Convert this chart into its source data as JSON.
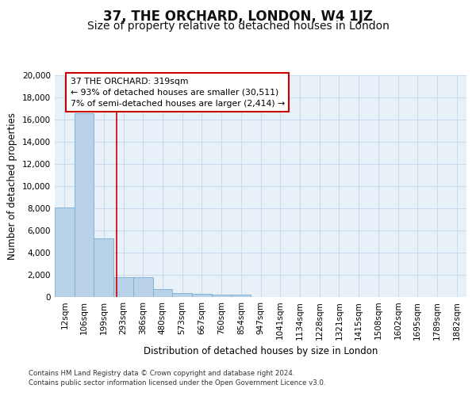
{
  "title": "37, THE ORCHARD, LONDON, W4 1JZ",
  "subtitle": "Size of property relative to detached houses in London",
  "xlabel": "Distribution of detached houses by size in London",
  "ylabel": "Number of detached properties",
  "footnote1": "Contains HM Land Registry data © Crown copyright and database right 2024.",
  "footnote2": "Contains public sector information licensed under the Open Government Licence v3.0.",
  "annotation_line1": "37 THE ORCHARD: 319sqm",
  "annotation_line2": "← 93% of detached houses are smaller (30,511)",
  "annotation_line3": "7% of semi-detached houses are larger (2,414) →",
  "bar_categories": [
    "12sqm",
    "106sqm",
    "199sqm",
    "293sqm",
    "386sqm",
    "480sqm",
    "573sqm",
    "667sqm",
    "760sqm",
    "854sqm",
    "947sqm",
    "1041sqm",
    "1134sqm",
    "1228sqm",
    "1321sqm",
    "1415sqm",
    "1508sqm",
    "1602sqm",
    "1695sqm",
    "1789sqm",
    "1882sqm"
  ],
  "bar_values": [
    8100,
    16600,
    5300,
    1800,
    1800,
    700,
    370,
    280,
    230,
    230,
    0,
    0,
    0,
    0,
    0,
    0,
    0,
    0,
    0,
    0,
    0
  ],
  "bar_color": "#b8d0e8",
  "bar_edge_color": "#7aaed0",
  "vline_color": "#cc0000",
  "vline_x": 2.65,
  "annotation_box_color": "#cc0000",
  "ylim": [
    0,
    20000
  ],
  "yticks": [
    0,
    2000,
    4000,
    6000,
    8000,
    10000,
    12000,
    14000,
    16000,
    18000,
    20000
  ],
  "grid_color": "#c8dced",
  "background_color": "#e8f0f8",
  "fig_background": "#ffffff",
  "title_fontsize": 12,
  "subtitle_fontsize": 10,
  "tick_fontsize": 7.5
}
